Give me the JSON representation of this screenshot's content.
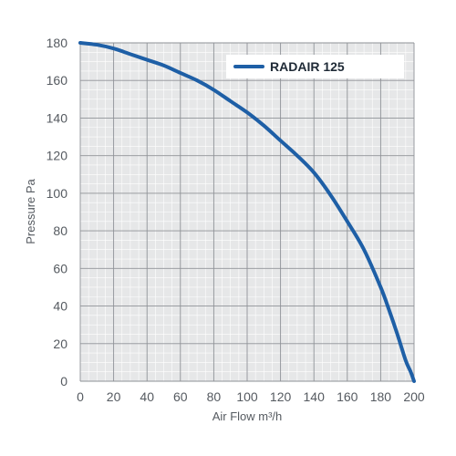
{
  "chart_data": {
    "type": "line",
    "title": "",
    "xlabel": "Air Flow m³/h",
    "ylabel": "Pressure Pa",
    "xlim": [
      0,
      200
    ],
    "ylim": [
      0,
      180
    ],
    "x_ticks": [
      "0",
      "20",
      "40",
      "60",
      "80",
      "100",
      "120",
      "140",
      "160",
      "180",
      "200"
    ],
    "y_ticks": [
      "0",
      "20",
      "40",
      "60",
      "80",
      "100",
      "120",
      "140",
      "160",
      "180"
    ],
    "grid": true,
    "legend_position": "top-right",
    "series": [
      {
        "name": "RADAIR 125",
        "color": "#1e5fa6",
        "x": [
          0,
          10,
          20,
          30,
          40,
          50,
          60,
          70,
          80,
          90,
          100,
          110,
          120,
          130,
          140,
          150,
          160,
          170,
          180,
          185,
          190,
          195,
          198,
          200
        ],
        "y": [
          180,
          179,
          177,
          174,
          171,
          168,
          164,
          160,
          155,
          149,
          143,
          136,
          128,
          120,
          111,
          99,
          85,
          70,
          50,
          38,
          25,
          11,
          5,
          0
        ]
      }
    ]
  }
}
